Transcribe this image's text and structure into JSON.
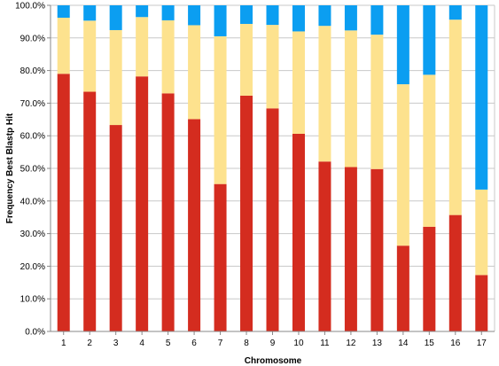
{
  "chart_data": {
    "type": "bar",
    "stacked": true,
    "title": "",
    "xlabel": "Chromosome",
    "ylabel": "Frequency Best Blastp Hit",
    "ylim": [
      0,
      100
    ],
    "y_ticks": [
      0,
      10,
      20,
      30,
      40,
      50,
      60,
      70,
      80,
      90,
      100
    ],
    "y_tick_labels": [
      "0.0%",
      "10.0%",
      "20.0%",
      "30.0%",
      "40.0%",
      "50.0%",
      "60.0%",
      "70.0%",
      "80.0%",
      "90.0%",
      "100.0%"
    ],
    "grid": true,
    "legend": "none",
    "categories": [
      "1",
      "2",
      "3",
      "4",
      "5",
      "6",
      "7",
      "8",
      "9",
      "10",
      "11",
      "12",
      "13",
      "14",
      "15",
      "16",
      "17"
    ],
    "series": [
      {
        "color": "#d42c1f",
        "values": [
          79.0,
          73.5,
          63.3,
          78.2,
          73.0,
          65.1,
          45.2,
          72.3,
          68.4,
          60.6,
          52.1,
          50.4,
          49.8,
          26.3,
          32.1,
          35.7,
          17.3
        ]
      },
      {
        "color": "#fde28e",
        "values": [
          17.2,
          21.8,
          29.1,
          18.2,
          22.4,
          28.8,
          45.3,
          22.0,
          25.6,
          31.4,
          41.6,
          41.9,
          41.2,
          49.5,
          46.6,
          59.9,
          26.2
        ]
      },
      {
        "color": "#0b9ef1",
        "values": [
          3.8,
          4.7,
          7.6,
          3.6,
          4.6,
          6.1,
          9.5,
          5.7,
          6.0,
          8.0,
          6.3,
          7.7,
          9.0,
          24.2,
          21.3,
          4.4,
          56.5
        ]
      }
    ]
  }
}
